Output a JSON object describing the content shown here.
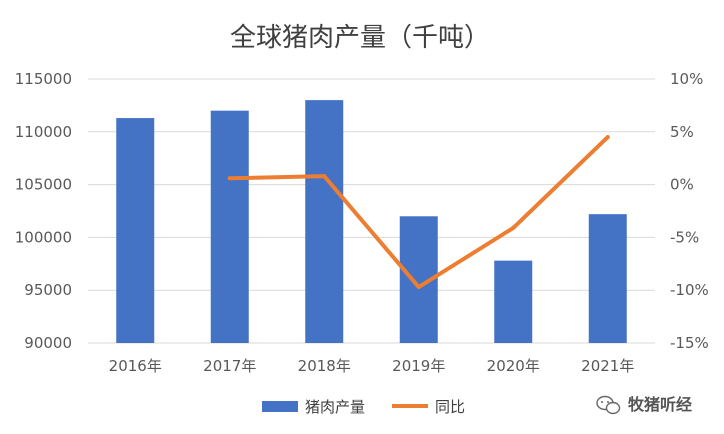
{
  "chart_data": {
    "type": "bar",
    "title": "全球猪肉产量（千吨）",
    "categories": [
      "2016年",
      "2017年",
      "2018年",
      "2019年",
      "2020年",
      "2021年"
    ],
    "series": [
      {
        "name": "猪肉产量",
        "type": "bar",
        "axis": "left",
        "color": "#4472c4",
        "values": [
          111300,
          112000,
          113000,
          102000,
          97800,
          102200
        ]
      },
      {
        "name": "同比",
        "type": "line",
        "axis": "right",
        "color": "#ed7d31",
        "values": [
          null,
          0.6,
          0.8,
          -9.7,
          -4.1,
          4.5
        ]
      }
    ],
    "ylim": [
      90000,
      115000
    ],
    "yticks": [
      "90000",
      "95000",
      "100000",
      "105000",
      "110000",
      "115000"
    ],
    "y2lim": [
      -15,
      10
    ],
    "y2ticks": [
      "-15%",
      "-10%",
      "-5%",
      "0%",
      "5%",
      "10%"
    ],
    "grid": true,
    "legend": "bottom"
  },
  "watermark": {
    "icon": "wechat-icon",
    "text": "牧猪听经"
  }
}
